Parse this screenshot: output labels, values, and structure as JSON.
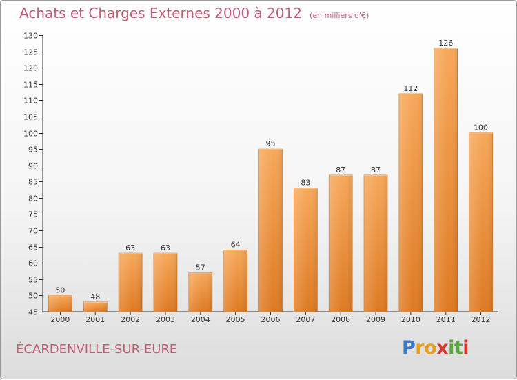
{
  "header": {
    "title": "Achats et Charges Externes 2000 à 2012",
    "subtitle": "(en milliers d'€)"
  },
  "footer": {
    "commune": "ÉCARDENVILLE-SUR-EURE",
    "logo_letters": [
      "P",
      "r",
      "o",
      "x",
      "i",
      "t",
      "i"
    ],
    "logo_colors": [
      "#3a78c9",
      "#e8a020",
      "#e8a020",
      "#d9362b",
      "#5aa83c",
      "#5aa83c",
      "#d9362b"
    ]
  },
  "chart_data": {
    "type": "bar",
    "title": "Achats et Charges Externes 2000 à 2012",
    "subtitle": "(en milliers d'€)",
    "categories": [
      "2000",
      "2001",
      "2002",
      "2003",
      "2004",
      "2005",
      "2006",
      "2007",
      "2008",
      "2009",
      "2010",
      "2011",
      "2012"
    ],
    "values": [
      50,
      48,
      63,
      63,
      57,
      64,
      95,
      83,
      87,
      87,
      112,
      126,
      100
    ],
    "ylim": [
      45,
      130
    ],
    "yticks": [
      45,
      50,
      55,
      60,
      65,
      70,
      75,
      80,
      85,
      90,
      95,
      100,
      105,
      110,
      115,
      120,
      125,
      130
    ],
    "grid": false,
    "bar_color": "#f0913a",
    "bar_color_light": "#f6aa5e",
    "bar_color_dark": "#d8721c"
  }
}
